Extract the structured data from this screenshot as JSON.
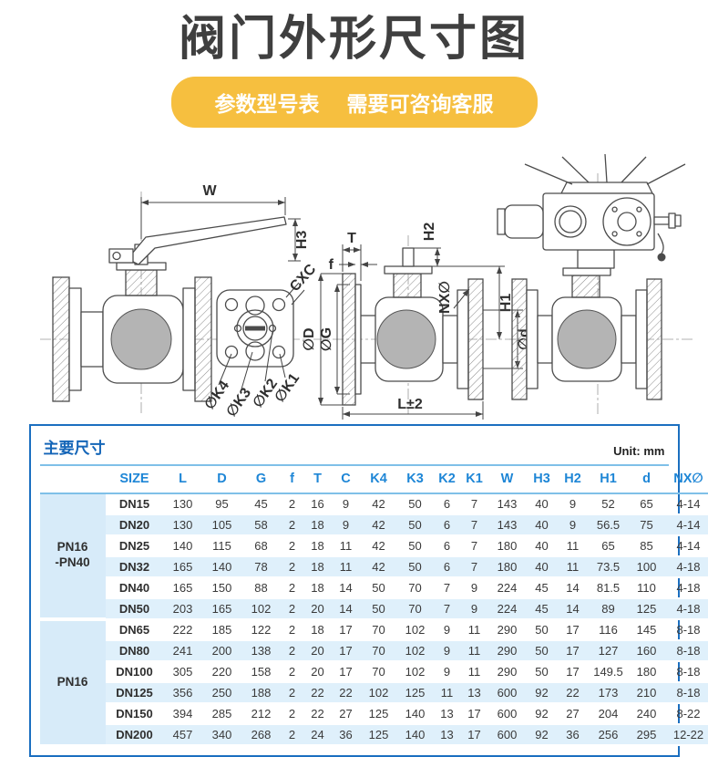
{
  "header": {
    "title": "阀门外形尺寸图",
    "banner_left": "参数型号表",
    "banner_right": "需要可咨询客服"
  },
  "drawing": {
    "left_valve": {
      "dim_w": "W",
      "dim_h3": "H3"
    },
    "pad_view": {
      "dim_cxc": "CXC",
      "dim_k4": "∅K4",
      "dim_k3": "∅K3",
      "dim_k2": "∅K2",
      "dim_k1": "∅K1"
    },
    "middle_valve": {
      "dim_t": "T",
      "dim_f": "f",
      "dim_D": "∅D",
      "dim_G": "∅G",
      "dim_h2": "H2",
      "dim_nx": "NX∅",
      "dim_h1": "H1",
      "dim_d": "∅d",
      "dim_l": "L±2"
    }
  },
  "table": {
    "title": "主要尺寸",
    "unit": "Unit: mm",
    "columns": [
      "SIZE",
      "L",
      "D",
      "G",
      "f",
      "T",
      "C",
      "K4",
      "K3",
      "K2",
      "K1",
      "W",
      "H3",
      "H2",
      "H1",
      "d",
      "NX∅"
    ],
    "groups": [
      {
        "label_lines": [
          "PN16",
          "-PN40"
        ],
        "rows": [
          {
            "size": "DN15",
            "values": [
              "130",
              "95",
              "45",
              "2",
              "16",
              "9",
              "42",
              "50",
              "6",
              "7",
              "143",
              "40",
              "9",
              "52",
              "65",
              "4-14"
            ]
          },
          {
            "size": "DN20",
            "values": [
              "130",
              "105",
              "58",
              "2",
              "18",
              "9",
              "42",
              "50",
              "6",
              "7",
              "143",
              "40",
              "9",
              "56.5",
              "75",
              "4-14"
            ]
          },
          {
            "size": "DN25",
            "values": [
              "140",
              "115",
              "68",
              "2",
              "18",
              "11",
              "42",
              "50",
              "6",
              "7",
              "180",
              "40",
              "11",
              "65",
              "85",
              "4-14"
            ]
          },
          {
            "size": "DN32",
            "values": [
              "165",
              "140",
              "78",
              "2",
              "18",
              "11",
              "42",
              "50",
              "6",
              "7",
              "180",
              "40",
              "11",
              "73.5",
              "100",
              "4-18"
            ]
          },
          {
            "size": "DN40",
            "values": [
              "165",
              "150",
              "88",
              "2",
              "18",
              "14",
              "50",
              "70",
              "7",
              "9",
              "224",
              "45",
              "14",
              "81.5",
              "110",
              "4-18"
            ]
          },
          {
            "size": "DN50",
            "values": [
              "203",
              "165",
              "102",
              "2",
              "20",
              "14",
              "50",
              "70",
              "7",
              "9",
              "224",
              "45",
              "14",
              "89",
              "125",
              "4-18"
            ]
          }
        ]
      },
      {
        "label_lines": [
          "PN16"
        ],
        "rows": [
          {
            "size": "DN65",
            "values": [
              "222",
              "185",
              "122",
              "2",
              "18",
              "17",
              "70",
              "102",
              "9",
              "11",
              "290",
              "50",
              "17",
              "116",
              "145",
              "8-18"
            ]
          },
          {
            "size": "DN80",
            "values": [
              "241",
              "200",
              "138",
              "2",
              "20",
              "17",
              "70",
              "102",
              "9",
              "11",
              "290",
              "50",
              "17",
              "127",
              "160",
              "8-18"
            ]
          },
          {
            "size": "DN100",
            "values": [
              "305",
              "220",
              "158",
              "2",
              "20",
              "17",
              "70",
              "102",
              "9",
              "11",
              "290",
              "50",
              "17",
              "149.5",
              "180",
              "8-18"
            ]
          },
          {
            "size": "DN125",
            "values": [
              "356",
              "250",
              "188",
              "2",
              "22",
              "22",
              "102",
              "125",
              "11",
              "13",
              "600",
              "92",
              "22",
              "173",
              "210",
              "8-18"
            ]
          },
          {
            "size": "DN150",
            "values": [
              "394",
              "285",
              "212",
              "2",
              "22",
              "27",
              "125",
              "140",
              "13",
              "17",
              "600",
              "92",
              "27",
              "204",
              "240",
              "8-22"
            ]
          },
          {
            "size": "DN200",
            "values": [
              "457",
              "340",
              "268",
              "2",
              "24",
              "36",
              "125",
              "140",
              "13",
              "17",
              "600",
              "92",
              "36",
              "256",
              "295",
              "12-22"
            ]
          }
        ]
      }
    ]
  },
  "colors": {
    "accent_blue": "#1b6fc0",
    "header_blue": "#1e86d6",
    "title_blue": "#1566b8",
    "stripe": "#dff0fb",
    "group_bg": "#d7ebf9",
    "yellow": "#f6bf3f",
    "ink": "#3a3a3a",
    "title_ink": "#3f3f3f",
    "rule_light": "#7fc0e8"
  }
}
